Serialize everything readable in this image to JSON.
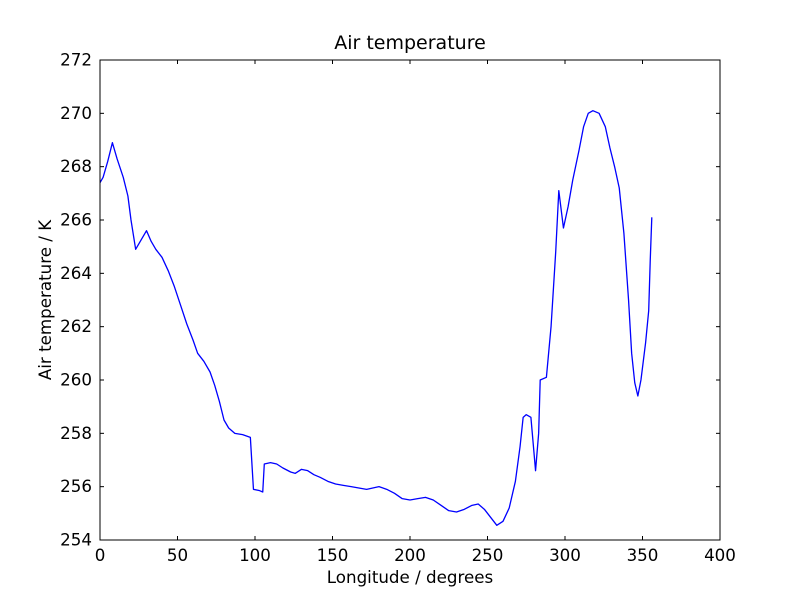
{
  "chart_data": {
    "type": "line",
    "title": "Air temperature",
    "xlabel": "Longitude / degrees",
    "ylabel": "Air temperature / K",
    "xlim": [
      0,
      400
    ],
    "ylim": [
      254,
      272
    ],
    "xticks": [
      0,
      50,
      100,
      150,
      200,
      250,
      300,
      350,
      400
    ],
    "yticks": [
      254,
      256,
      258,
      260,
      262,
      264,
      266,
      268,
      270,
      272
    ],
    "grid": false,
    "legend": null,
    "tick_direction": "in",
    "line_color": "#0000ff",
    "axis_color": "#000000",
    "background_color": "#ffffff",
    "series_name": "Air temperature",
    "x": [
      0,
      2,
      5,
      8,
      11,
      15,
      18,
      20,
      23,
      26,
      30,
      33,
      36,
      40,
      44,
      48,
      52,
      56,
      60,
      63,
      67,
      71,
      74,
      77,
      80,
      83,
      87,
      92,
      97,
      99,
      103,
      105,
      106,
      110,
      114,
      118,
      123,
      126,
      130,
      134,
      138,
      142,
      147,
      152,
      157,
      162,
      167,
      172,
      176,
      180,
      185,
      190,
      195,
      200,
      205,
      210,
      215,
      220,
      225,
      230,
      235,
      240,
      244,
      248,
      252,
      256,
      260,
      264,
      268,
      271,
      273,
      275,
      278,
      281,
      283,
      284,
      288,
      291,
      294,
      296,
      299,
      302,
      305,
      309,
      312,
      315,
      318,
      322,
      326,
      329,
      332,
      335,
      338,
      341,
      343,
      345,
      347,
      349,
      352,
      354,
      355,
      356
    ],
    "y": [
      267.4,
      267.6,
      268.2,
      268.9,
      268.3,
      267.6,
      266.9,
      266.0,
      264.9,
      265.2,
      265.6,
      265.2,
      264.9,
      264.6,
      264.1,
      263.5,
      262.8,
      262.1,
      261.5,
      261.0,
      260.7,
      260.3,
      259.8,
      259.2,
      258.5,
      258.2,
      258.0,
      257.95,
      257.85,
      255.9,
      255.85,
      255.8,
      256.85,
      256.9,
      256.85,
      256.7,
      256.55,
      256.5,
      256.65,
      256.6,
      256.45,
      256.35,
      256.2,
      256.1,
      256.05,
      256.0,
      255.95,
      255.9,
      255.95,
      256.0,
      255.9,
      255.75,
      255.55,
      255.5,
      255.55,
      255.6,
      255.5,
      255.3,
      255.1,
      255.05,
      255.15,
      255.3,
      255.35,
      255.15,
      254.85,
      254.55,
      254.7,
      255.2,
      256.2,
      257.5,
      258.6,
      258.7,
      258.6,
      256.6,
      258.0,
      260.0,
      260.1,
      262.0,
      264.8,
      267.1,
      265.7,
      266.5,
      267.5,
      268.6,
      269.5,
      270.0,
      270.1,
      270.0,
      269.5,
      268.7,
      268.0,
      267.2,
      265.5,
      263.0,
      261.0,
      259.9,
      259.4,
      260.0,
      261.4,
      262.6,
      264.5,
      266.1
    ]
  }
}
